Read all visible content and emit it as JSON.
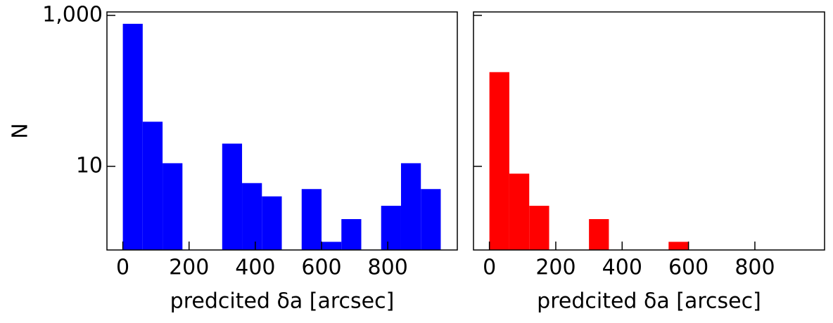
{
  "chart_data": [
    {
      "type": "histogram",
      "ylabel": "N",
      "xlabel": "predcited δa [arcsec]",
      "color": "#0000ff",
      "log_y": true,
      "ytick_labels": true,
      "bins": [
        0,
        60,
        120,
        180,
        240,
        300,
        360,
        420,
        480,
        540,
        600,
        660,
        720,
        780,
        840,
        900,
        960
      ],
      "values": [
        773,
        39,
        11,
        0,
        0,
        20,
        6,
        4,
        0,
        5,
        1,
        2,
        0,
        3,
        11,
        5
      ],
      "xlim": [
        -48,
        1010
      ],
      "xticks": [
        0,
        200,
        400,
        600,
        800
      ],
      "ylim": [
        0.78,
        1110
      ],
      "yticks": [
        10,
        {
          "value": 1000,
          "label": "1,000"
        }
      ]
    },
    {
      "type": "histogram",
      "xlabel": "predcited δa [arcsec]",
      "color": "#ff0000",
      "log_y": true,
      "ytick_labels": false,
      "bins": [
        0,
        60,
        120,
        180,
        240,
        300,
        360,
        420,
        480,
        540,
        600,
        660,
        720,
        780,
        840,
        900,
        960
      ],
      "values": [
        177,
        8,
        3,
        0,
        0,
        2,
        0,
        0,
        0,
        1,
        0,
        0,
        0,
        0,
        0,
        0
      ],
      "xlim": [
        -48,
        1010
      ],
      "xticks": [
        0,
        200,
        400,
        600,
        800
      ],
      "ylim": [
        0.78,
        1110
      ],
      "yticks": [
        10,
        1000
      ]
    }
  ]
}
